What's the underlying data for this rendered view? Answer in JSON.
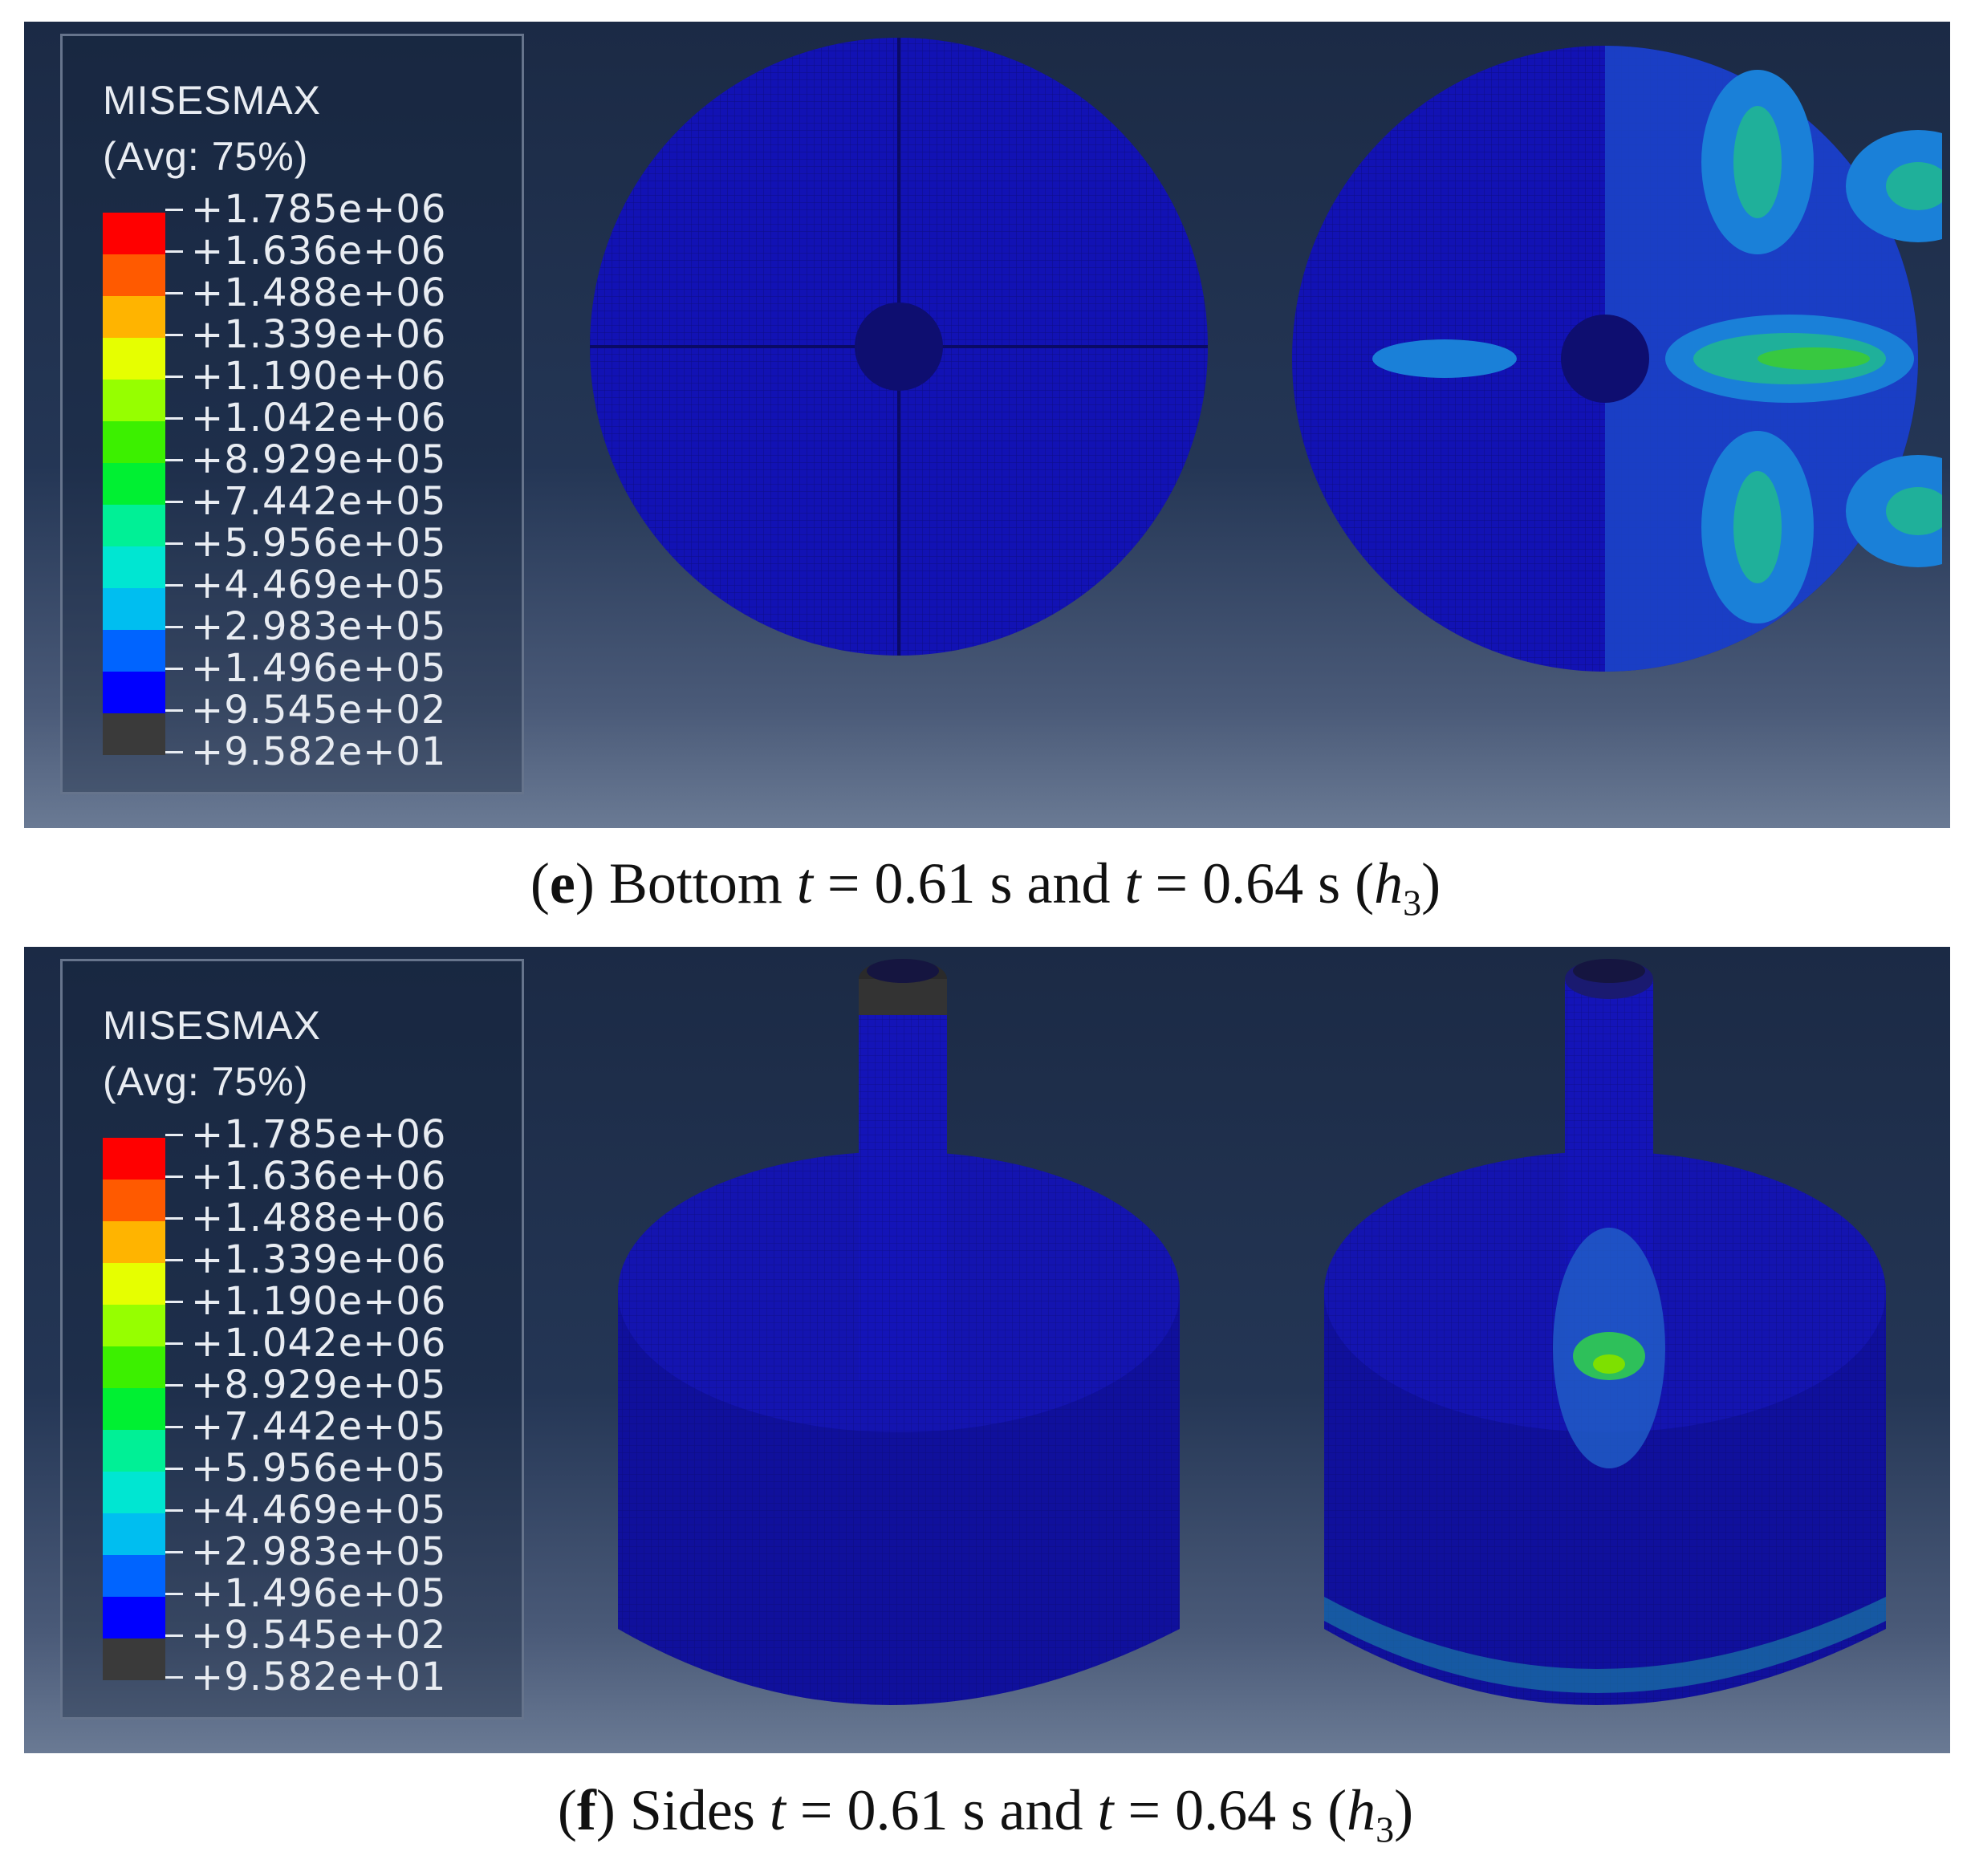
{
  "legend": {
    "title": "MISESMAX",
    "subtitle": "(Avg: 75%)",
    "values": [
      "+1.785e+06",
      "+1.636e+06",
      "+1.488e+06",
      "+1.339e+06",
      "+1.190e+06",
      "+1.042e+06",
      "+8.929e+05",
      "+7.442e+05",
      "+5.956e+05",
      "+4.469e+05",
      "+2.983e+05",
      "+1.496e+05",
      "+9.545e+02",
      "+9.582e+01"
    ],
    "colors": [
      "#ff0000",
      "#ff5a00",
      "#ffb400",
      "#e6ff00",
      "#96ff00",
      "#3cf000",
      "#00f032",
      "#00f096",
      "#00e6d2",
      "#00bef0",
      "#0064ff",
      "#0000ff",
      "#3a3a3a"
    ]
  },
  "panels": {
    "e": {
      "caption_letter": "e",
      "caption_pre": " Bottom ",
      "t1_var": "t",
      "t1_val": " = 0.61 s and ",
      "t2_var": "t",
      "t2_val": " = 0.64 s (",
      "h_var": "h",
      "h_sub": "3",
      "close": ")"
    },
    "f": {
      "caption_letter": "f",
      "caption_pre": " Sides ",
      "t1_var": "t",
      "t1_val": " = 0.61 s and ",
      "t2_var": "t",
      "t2_val": " = 0.64 s (",
      "h_var": "h",
      "h_sub": "3",
      "close": ")"
    }
  }
}
